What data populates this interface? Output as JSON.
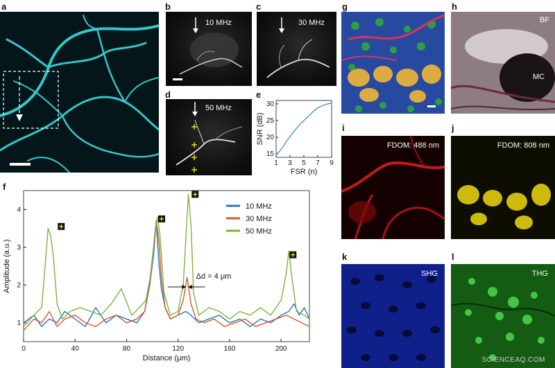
{
  "panels": {
    "a": {
      "label": "a"
    },
    "b": {
      "label": "b",
      "freq": "10 MHz"
    },
    "c": {
      "label": "c",
      "freq": "30 MHz"
    },
    "d": {
      "label": "d",
      "freq": "50 MHz"
    },
    "e": {
      "label": "e"
    },
    "f": {
      "label": "f"
    },
    "g": {
      "label": "g"
    },
    "h": {
      "label": "h",
      "tag1": "BF",
      "tag2": "MC"
    },
    "i": {
      "label": "i",
      "tag": "FDOM: 488 nm"
    },
    "j": {
      "label": "j",
      "tag": "FDOM: 808 nm"
    },
    "k": {
      "label": "k",
      "tag": "SHG"
    },
    "l": {
      "label": "l",
      "tag": "THG"
    }
  },
  "watermark": "SCIENCEAQ.COM",
  "colors": {
    "cyan": "#33c7c9",
    "blue_series": "#2a74b8",
    "orange_series": "#d9572b",
    "green_series": "#7fb23a",
    "marker_yellow": "#ffff00"
  },
  "chart_data": [
    {
      "id": "e",
      "type": "line",
      "xlabel": "FSR (n)",
      "ylabel": "SNR (dB)",
      "xlim": [
        1,
        9
      ],
      "ylim": [
        14,
        31
      ],
      "xticks": [
        1,
        3,
        5,
        7,
        9
      ],
      "yticks": [
        15,
        20,
        25,
        30
      ],
      "series": [
        {
          "x": [
            1,
            1.5,
            2,
            2.5,
            3,
            3.5,
            4,
            4.5,
            5,
            5.5,
            6,
            6.5,
            7,
            7.5,
            8,
            8.5,
            9
          ],
          "y": [
            14.8,
            15.8,
            17.2,
            18.8,
            20.2,
            21.6,
            22.8,
            24.0,
            25.0,
            26.0,
            27.0,
            28.0,
            28.8,
            29.3,
            29.7,
            30.0,
            30.2
          ]
        }
      ]
    },
    {
      "id": "f",
      "type": "line",
      "xlabel": "Distance (μm)",
      "ylabel": "Amplitude (a.u.)",
      "xlim": [
        0,
        222
      ],
      "ylim": [
        0.5,
        4.5
      ],
      "xticks": [
        0,
        40,
        80,
        120,
        160,
        200
      ],
      "yticks": [
        1,
        2,
        3,
        4
      ],
      "legend_position": "top-right",
      "annotation": "Δd = 4 μm",
      "series": [
        {
          "name": "10 MHz",
          "x": [
            0,
            8,
            14,
            20,
            26,
            32,
            40,
            48,
            56,
            64,
            72,
            80,
            88,
            94,
            98,
            101,
            103,
            105,
            107,
            110,
            114,
            120,
            126,
            130,
            136,
            144,
            152,
            160,
            168,
            176,
            184,
            192,
            200,
            206,
            210,
            214,
            218,
            222
          ],
          "y": [
            1.0,
            1.2,
            0.9,
            1.1,
            1.0,
            1.3,
            1.1,
            0.9,
            1.4,
            1.0,
            1.2,
            1.1,
            1.0,
            1.3,
            2.0,
            2.8,
            3.7,
            2.6,
            1.9,
            1.4,
            1.1,
            1.2,
            1.3,
            1.2,
            1.0,
            1.1,
            1.2,
            1.0,
            1.1,
            0.9,
            1.1,
            1.0,
            1.2,
            1.3,
            1.5,
            1.2,
            1.4,
            1.1
          ]
        },
        {
          "name": "30 MHz",
          "x": [
            0,
            8,
            14,
            20,
            26,
            32,
            40,
            48,
            56,
            64,
            72,
            80,
            88,
            94,
            98,
            101,
            103,
            105,
            107,
            110,
            114,
            120,
            124,
            127,
            130,
            134,
            140,
            148,
            156,
            164,
            172,
            180,
            188,
            196,
            204,
            210,
            216,
            222
          ],
          "y": [
            0.8,
            1.1,
            1.0,
            1.3,
            0.9,
            1.1,
            1.2,
            1.0,
            0.9,
            1.1,
            1.2,
            1.0,
            1.1,
            1.3,
            2.1,
            3.0,
            3.7,
            3.2,
            2.2,
            1.4,
            1.1,
            1.2,
            1.6,
            2.2,
            1.5,
            1.1,
            1.0,
            1.1,
            0.9,
            1.0,
            1.1,
            0.9,
            1.0,
            1.1,
            1.2,
            1.1,
            1.0,
            0.9
          ]
        },
        {
          "name": "50 MHz",
          "x": [
            0,
            8,
            14,
            17,
            19,
            21,
            23,
            26,
            30,
            36,
            44,
            52,
            60,
            68,
            76,
            84,
            90,
            95,
            99,
            102,
            104,
            106,
            109,
            114,
            120,
            124,
            126,
            128,
            130,
            132,
            136,
            144,
            152,
            160,
            168,
            176,
            184,
            192,
            200,
            204,
            206,
            208,
            212,
            218,
            222
          ],
          "y": [
            0.9,
            1.2,
            1.4,
            2.6,
            3.5,
            3.3,
            2.8,
            1.5,
            1.1,
            1.3,
            1.4,
            1.3,
            1.2,
            1.5,
            1.9,
            1.2,
            1.4,
            1.6,
            2.3,
            3.4,
            3.8,
            3.3,
            1.8,
            1.2,
            1.3,
            2.0,
            3.2,
            4.4,
            3.6,
            1.8,
            1.2,
            1.4,
            1.3,
            1.1,
            1.3,
            1.2,
            1.4,
            1.2,
            1.6,
            2.3,
            2.9,
            2.3,
            1.3,
            1.2,
            1.1
          ]
        }
      ]
    }
  ]
}
